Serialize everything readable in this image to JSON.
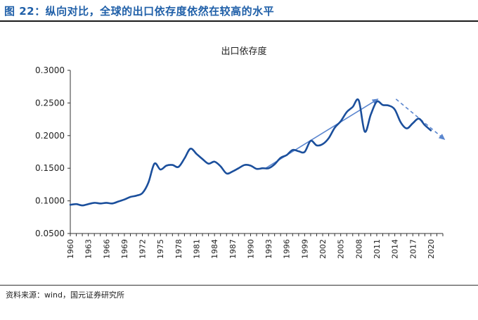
{
  "figure_title": "图 22：纵向对比，全球的出口依存度依然在较高的水平",
  "source": "资料来源：wind，国元证券研究所",
  "chart_data": {
    "type": "line",
    "title": "出口依存度",
    "xlabel": "",
    "ylabel": "",
    "ylim": [
      0.05,
      0.3
    ],
    "xlim": [
      1960,
      2022
    ],
    "yticks": [
      "0.0500",
      "0.1000",
      "0.1500",
      "0.2000",
      "0.2500",
      "0.3000"
    ],
    "xticks": [
      "1960",
      "1963",
      "1966",
      "1969",
      "1972",
      "1975",
      "1978",
      "1981",
      "1984",
      "1987",
      "1990",
      "1993",
      "1996",
      "1999",
      "2002",
      "2005",
      "2008",
      "2011",
      "2014",
      "2017",
      "2020"
    ],
    "grid": false,
    "legend": "none",
    "series": [
      {
        "color": "#1b4f9c",
        "x": [
          1960,
          1961,
          1962,
          1963,
          1964,
          1965,
          1966,
          1967,
          1968,
          1969,
          1970,
          1971,
          1972,
          1973,
          1974,
          1975,
          1976,
          1977,
          1978,
          1979,
          1980,
          1981,
          1982,
          1983,
          1984,
          1985,
          1986,
          1987,
          1988,
          1989,
          1990,
          1991,
          1992,
          1993,
          1994,
          1995,
          1996,
          1997,
          1998,
          1999,
          2000,
          2001,
          2002,
          2003,
          2004,
          2005,
          2006,
          2007,
          2008,
          2009,
          2010,
          2011,
          2012,
          2013,
          2014,
          2015,
          2016,
          2017,
          2018,
          2019,
          2020
        ],
        "y": [
          0.094,
          0.095,
          0.093,
          0.095,
          0.097,
          0.096,
          0.097,
          0.096,
          0.099,
          0.102,
          0.106,
          0.108,
          0.112,
          0.128,
          0.157,
          0.148,
          0.154,
          0.155,
          0.152,
          0.165,
          0.18,
          0.172,
          0.164,
          0.157,
          0.16,
          0.153,
          0.142,
          0.145,
          0.15,
          0.155,
          0.154,
          0.149,
          0.15,
          0.15,
          0.156,
          0.166,
          0.17,
          0.178,
          0.176,
          0.175,
          0.192,
          0.185,
          0.187,
          0.196,
          0.212,
          0.222,
          0.236,
          0.244,
          0.254,
          0.206,
          0.232,
          0.252,
          0.247,
          0.246,
          0.24,
          0.22,
          0.211,
          0.219,
          0.226,
          0.216,
          0.208
        ]
      }
    ],
    "annotations": [
      {
        "type": "arrow",
        "style": "solid",
        "color": "#5b86cf",
        "from": [
          1992.5,
          0.15
        ],
        "to": [
          2011.2,
          0.256
        ]
      },
      {
        "type": "arrow",
        "style": "dashed",
        "color": "#5b86cf",
        "from": [
          2014.2,
          0.256
        ],
        "to": [
          2022.3,
          0.194
        ]
      }
    ]
  }
}
